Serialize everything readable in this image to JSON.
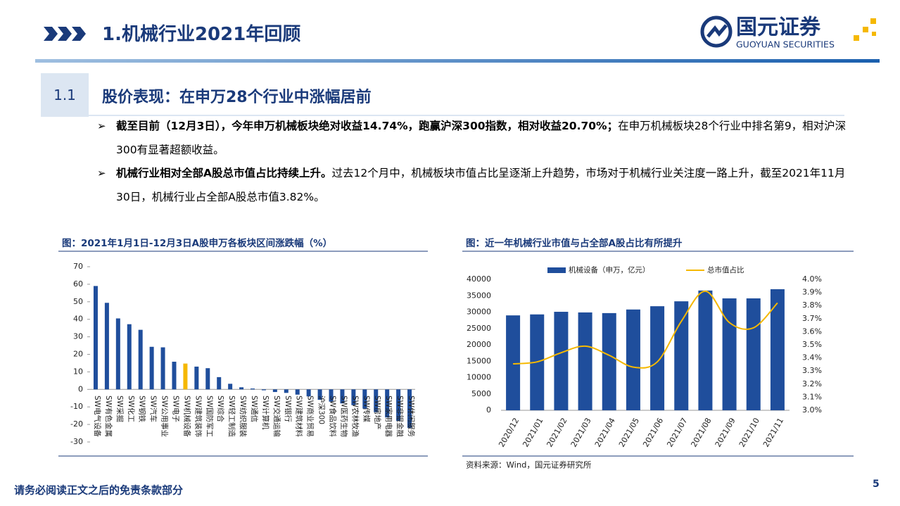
{
  "header": {
    "title": "1.机械行业2021年回顾",
    "logo_cn": "国元证券",
    "logo_en": "GUOYUAN SECURITIES"
  },
  "section": {
    "number": "1.1",
    "title": "股价表现：在申万28个行业中涨幅居前"
  },
  "bullets": [
    {
      "bold": "截至目前（12月3日），今年申万机械板块绝对收益14.74%，跑赢沪深300指数，相对收益20.70%；",
      "text": "在申万机械板块28个行业中排名第9，相对沪深300有显著超额收益。"
    },
    {
      "bold": "机械行业相对全部A股总市值占比持续上升。",
      "text": "过去12个月中，机械板块市值占比呈逐渐上升趋势，市场对于机械行业关注度一路上升，截至2021年11月30日，机械行业占全部A股总市值3.82%。"
    }
  ],
  "chart_data": [
    {
      "type": "bar",
      "title": "图：2021年1月1日-12月3日A股申万各板块区间涨跌幅（%）",
      "categories": [
        "SW电气设备",
        "SW有色金属",
        "SW采掘",
        "SW化工",
        "SW钢铁",
        "SW汽车",
        "SW公用事业",
        "SW电子",
        "SW机械设备",
        "SW建筑装饰",
        "SW国防军工",
        "SW综合",
        "SW轻工制造",
        "SW纺织服装",
        "SW通信",
        "SW计算机",
        "SW交通运输",
        "SW银行",
        "SW建筑材料",
        "SW商业贸易",
        "沪深300",
        "SW食品饮料",
        "SW医药生物",
        "SW农林牧渔",
        "SW传媒",
        "SW房地产",
        "SW家用电器",
        "SW非银金融",
        "SW休闲服务"
      ],
      "values": [
        59,
        49.4,
        40.5,
        37.2,
        34,
        24.3,
        24,
        15.8,
        14.74,
        13,
        12.1,
        7,
        3.2,
        1.2,
        0.5,
        -0.5,
        -1.5,
        -2,
        -3,
        -4,
        -5.96,
        -7,
        -8,
        -9,
        -11,
        -13,
        -16,
        -18,
        -22
      ],
      "colors": [
        "#1f4e9c",
        "#1f4e9c",
        "#1f4e9c",
        "#1f4e9c",
        "#1f4e9c",
        "#1f4e9c",
        "#1f4e9c",
        "#1f4e9c",
        "#f5b800",
        "#1f4e9c",
        "#1f4e9c",
        "#1f4e9c",
        "#1f4e9c",
        "#1f4e9c",
        "#1f4e9c",
        "#1f4e9c",
        "#1f4e9c",
        "#1f4e9c",
        "#1f4e9c",
        "#1f4e9c",
        "#1f4e9c",
        "#1f4e9c",
        "#1f4e9c",
        "#1f4e9c",
        "#1f4e9c",
        "#1f4e9c",
        "#1f4e9c",
        "#1f4e9c",
        "#1f4e9c"
      ],
      "ylim": [
        -30,
        70
      ],
      "yticks": [
        70,
        60,
        50,
        40,
        30,
        20,
        10,
        0,
        -10,
        -20,
        -30
      ]
    },
    {
      "type": "combo",
      "title": "图：近一年机械行业市值与占全部A股占比有所提升",
      "categories": [
        "2020/12",
        "2021/01",
        "2021/02",
        "2021/03",
        "2021/04",
        "2021/05",
        "2021/06",
        "2021/07",
        "2021/08",
        "2021/09",
        "2021/10",
        "2021/11"
      ],
      "series": [
        {
          "name": "机械设备（申万，亿元）",
          "color": "#1f4e9c",
          "type": "bar",
          "values": [
            29000,
            29300,
            30100,
            29900,
            29700,
            30800,
            31800,
            33300,
            36600,
            34200,
            34200,
            37000
          ]
        },
        {
          "name": "总市值占比",
          "color": "#f5b800",
          "type": "line",
          "axis": "y2",
          "values": [
            3.355,
            3.37,
            3.44,
            3.49,
            3.42,
            3.33,
            3.37,
            3.68,
            3.91,
            3.67,
            3.63,
            3.82
          ]
        }
      ],
      "ylim": [
        0,
        40000
      ],
      "yticks": [
        0,
        5000,
        10000,
        15000,
        20000,
        25000,
        30000,
        35000,
        40000
      ],
      "y2lim": [
        3.0,
        4.0
      ],
      "y2ticks": [
        {
          "value": 3.0,
          "label": "3.0%"
        },
        {
          "value": 3.1,
          "label": "3.1%"
        },
        {
          "value": 3.2,
          "label": "3.2%"
        },
        {
          "value": 3.3,
          "label": "3.3%"
        },
        {
          "value": 3.4,
          "label": "3.4%"
        },
        {
          "value": 3.5,
          "label": "3.5%"
        },
        {
          "value": 3.6,
          "label": "3.6%"
        },
        {
          "value": 3.7,
          "label": "3.7%"
        },
        {
          "value": 3.8,
          "label": "3.8%"
        },
        {
          "value": 3.9,
          "label": "3.9%"
        },
        {
          "value": 4.0,
          "label": "4.0%"
        }
      ],
      "source": "资料来源：Wind，国元证券研究所"
    }
  ],
  "footer": {
    "disclaimer": "请务必阅读正文之后的免责条款部分",
    "page": "5"
  }
}
